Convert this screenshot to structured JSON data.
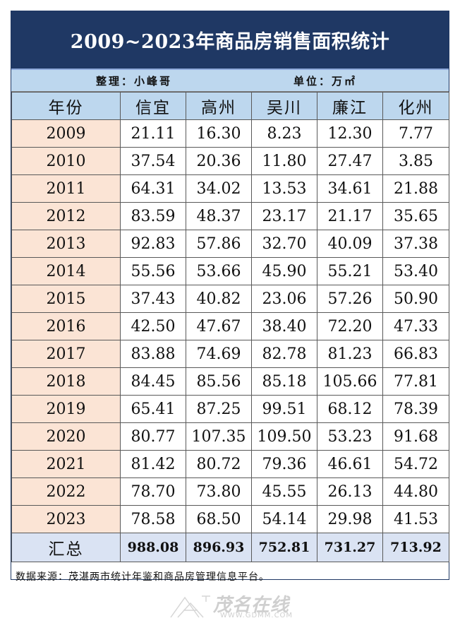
{
  "title": "2009~2023年商品房销售面积统计",
  "meta": {
    "compiler": "整理：小峰哥",
    "unit": "单位：万㎡"
  },
  "table": {
    "headers": [
      "年份",
      "信宜",
      "高州",
      "吴川",
      "廉江",
      "化州"
    ],
    "rows": [
      [
        "2009",
        "21.11",
        "16.30",
        "8.23",
        "12.30",
        "7.77"
      ],
      [
        "2010",
        "37.54",
        "20.36",
        "11.80",
        "27.47",
        "3.85"
      ],
      [
        "2011",
        "64.31",
        "34.02",
        "13.53",
        "34.61",
        "21.88"
      ],
      [
        "2012",
        "83.59",
        "48.37",
        "23.17",
        "21.17",
        "35.65"
      ],
      [
        "2013",
        "92.83",
        "57.86",
        "32.70",
        "40.09",
        "37.38"
      ],
      [
        "2014",
        "55.56",
        "53.66",
        "45.90",
        "55.21",
        "53.40"
      ],
      [
        "2015",
        "37.43",
        "40.82",
        "23.06",
        "57.26",
        "50.90"
      ],
      [
        "2016",
        "42.50",
        "47.67",
        "38.40",
        "72.20",
        "47.33"
      ],
      [
        "2017",
        "83.88",
        "74.69",
        "82.78",
        "81.23",
        "66.83"
      ],
      [
        "2018",
        "84.45",
        "85.56",
        "85.18",
        "105.66",
        "77.81"
      ],
      [
        "2019",
        "65.41",
        "87.25",
        "99.51",
        "68.12",
        "78.39"
      ],
      [
        "2020",
        "80.77",
        "107.35",
        "109.50",
        "53.23",
        "91.68"
      ],
      [
        "2021",
        "81.42",
        "80.72",
        "79.36",
        "46.61",
        "54.72"
      ],
      [
        "2022",
        "78.70",
        "73.80",
        "45.55",
        "26.13",
        "44.80"
      ],
      [
        "2023",
        "78.58",
        "68.50",
        "54.14",
        "29.98",
        "41.53"
      ]
    ],
    "total": [
      "汇总",
      "988.08",
      "896.93",
      "752.81",
      "731.27",
      "713.92"
    ]
  },
  "source": "数据来源：茂湛两市统计年鉴和商品房管理信息平台。",
  "watermark": {
    "logo_text": "茂名在线",
    "url": "WWW.GDMM.COM",
    "logo_icon": "gdmm-logo-icon"
  }
}
